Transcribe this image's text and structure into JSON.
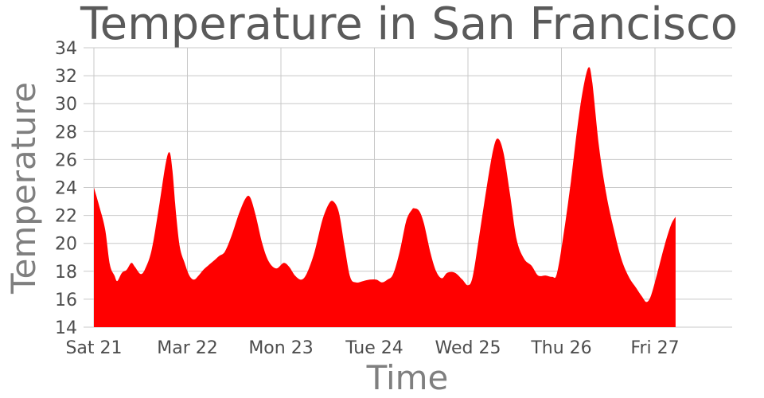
{
  "chart_data": {
    "type": "area",
    "title": "Temperature in San Francisco",
    "xlabel": "Time",
    "ylabel": "Temperature",
    "ylim": [
      14,
      34
    ],
    "yticks": [
      14,
      16,
      18,
      20,
      22,
      24,
      26,
      28,
      30,
      32,
      34
    ],
    "xlim": [
      0,
      7
    ],
    "x_unit": "days from Sat 21 00:00",
    "xticks": [
      {
        "x": 0,
        "label": "Sat 21"
      },
      {
        "x": 1,
        "label": "Mar 22"
      },
      {
        "x": 2,
        "label": "Mon 23"
      },
      {
        "x": 3,
        "label": "Tue 24"
      },
      {
        "x": 4,
        "label": "Wed 25"
      },
      {
        "x": 5,
        "label": "Thu 26"
      },
      {
        "x": 6,
        "label": "Fri 27"
      }
    ],
    "grid": true,
    "fill_color": "#ff0000",
    "series": [
      {
        "points": [
          [
            0.0,
            24.0
          ],
          [
            0.06,
            22.6
          ],
          [
            0.12,
            21.0
          ],
          [
            0.17,
            18.5
          ],
          [
            0.22,
            17.7
          ],
          [
            0.25,
            17.3
          ],
          [
            0.3,
            17.9
          ],
          [
            0.35,
            18.1
          ],
          [
            0.4,
            18.6
          ],
          [
            0.44,
            18.3
          ],
          [
            0.5,
            17.8
          ],
          [
            0.55,
            18.2
          ],
          [
            0.62,
            19.6
          ],
          [
            0.7,
            22.8
          ],
          [
            0.77,
            25.8
          ],
          [
            0.81,
            26.5
          ],
          [
            0.84,
            25.2
          ],
          [
            0.88,
            22.0
          ],
          [
            0.92,
            19.7
          ],
          [
            0.97,
            18.6
          ],
          [
            1.02,
            17.7
          ],
          [
            1.07,
            17.4
          ],
          [
            1.12,
            17.7
          ],
          [
            1.17,
            18.1
          ],
          [
            1.22,
            18.4
          ],
          [
            1.29,
            18.8
          ],
          [
            1.34,
            19.1
          ],
          [
            1.4,
            19.4
          ],
          [
            1.47,
            20.5
          ],
          [
            1.55,
            22.1
          ],
          [
            1.62,
            23.2
          ],
          [
            1.67,
            23.3
          ],
          [
            1.73,
            22.0
          ],
          [
            1.8,
            20.0
          ],
          [
            1.87,
            18.7
          ],
          [
            1.95,
            18.2
          ],
          [
            2.03,
            18.6
          ],
          [
            2.09,
            18.3
          ],
          [
            2.15,
            17.7
          ],
          [
            2.22,
            17.4
          ],
          [
            2.28,
            17.9
          ],
          [
            2.36,
            19.4
          ],
          [
            2.44,
            21.6
          ],
          [
            2.51,
            22.8
          ],
          [
            2.56,
            23.0
          ],
          [
            2.62,
            22.2
          ],
          [
            2.68,
            19.8
          ],
          [
            2.74,
            17.6
          ],
          [
            2.8,
            17.2
          ],
          [
            2.88,
            17.3
          ],
          [
            2.95,
            17.4
          ],
          [
            3.02,
            17.4
          ],
          [
            3.08,
            17.2
          ],
          [
            3.14,
            17.4
          ],
          [
            3.2,
            17.8
          ],
          [
            3.27,
            19.4
          ],
          [
            3.34,
            21.6
          ],
          [
            3.4,
            22.4
          ],
          [
            3.43,
            22.5
          ],
          [
            3.48,
            22.3
          ],
          [
            3.53,
            21.4
          ],
          [
            3.6,
            19.3
          ],
          [
            3.66,
            18.0
          ],
          [
            3.72,
            17.5
          ],
          [
            3.78,
            17.9
          ],
          [
            3.86,
            17.9
          ],
          [
            3.94,
            17.4
          ],
          [
            4.0,
            17.0
          ],
          [
            4.05,
            17.6
          ],
          [
            4.12,
            20.5
          ],
          [
            4.2,
            24.0
          ],
          [
            4.27,
            26.7
          ],
          [
            4.32,
            27.5
          ],
          [
            4.38,
            26.5
          ],
          [
            4.45,
            23.5
          ],
          [
            4.52,
            20.3
          ],
          [
            4.6,
            18.9
          ],
          [
            4.68,
            18.4
          ],
          [
            4.75,
            17.7
          ],
          [
            4.83,
            17.7
          ],
          [
            4.9,
            17.6
          ],
          [
            4.95,
            17.8
          ],
          [
            5.02,
            20.5
          ],
          [
            5.1,
            24.4
          ],
          [
            5.17,
            28.3
          ],
          [
            5.23,
            31.0
          ],
          [
            5.29,
            32.6
          ],
          [
            5.33,
            31.5
          ],
          [
            5.4,
            27.0
          ],
          [
            5.48,
            23.5
          ],
          [
            5.56,
            21.0
          ],
          [
            5.64,
            18.9
          ],
          [
            5.72,
            17.6
          ],
          [
            5.8,
            16.8
          ],
          [
            5.86,
            16.2
          ],
          [
            5.91,
            15.8
          ],
          [
            5.96,
            16.3
          ],
          [
            6.03,
            18.0
          ],
          [
            6.1,
            19.8
          ],
          [
            6.17,
            21.3
          ],
          [
            6.22,
            21.9
          ]
        ]
      }
    ]
  }
}
